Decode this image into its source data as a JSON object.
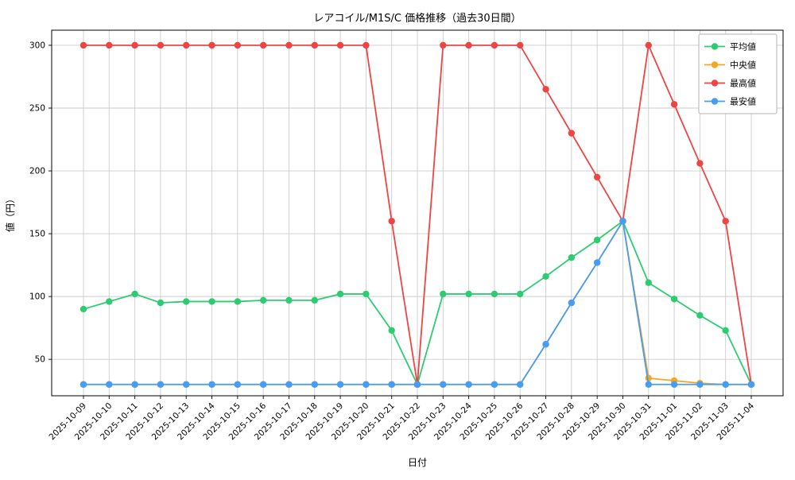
{
  "chart_data": {
    "type": "line",
    "title": "レアコイル/M1S/C 価格推移（過去30日間）",
    "xlabel": "日付",
    "ylabel": "値（円）",
    "grid": true,
    "legend_position": "top-right",
    "ylim": [
      21,
      312
    ],
    "yticks": [
      50,
      100,
      150,
      200,
      250,
      300
    ],
    "x": [
      "2025-10-09",
      "2025-10-10",
      "2025-10-11",
      "2025-10-12",
      "2025-10-13",
      "2025-10-14",
      "2025-10-15",
      "2025-10-16",
      "2025-10-17",
      "2025-10-18",
      "2025-10-19",
      "2025-10-20",
      "2025-10-21",
      "2025-10-22",
      "2025-10-23",
      "2025-10-24",
      "2025-10-25",
      "2025-10-26",
      "2025-10-27",
      "2025-10-28",
      "2025-10-29",
      "2025-10-30",
      "2025-10-31",
      "2025-11-01",
      "2025-11-02",
      "2025-11-03",
      "2025-11-04"
    ],
    "series": [
      {
        "name": "平均値",
        "color": "#2ecc71",
        "values": [
          90,
          96,
          102,
          95,
          96,
          96,
          96,
          97,
          97,
          97,
          102,
          102,
          73,
          30,
          102,
          102,
          102,
          102,
          116,
          131,
          145,
          160,
          111,
          98,
          85,
          73,
          30
        ]
      },
      {
        "name": "中央値",
        "color": "#f5a623",
        "values": [
          30,
          30,
          30,
          30,
          30,
          30,
          30,
          30,
          30,
          30,
          30,
          30,
          30,
          30,
          30,
          30,
          30,
          30,
          62,
          95,
          127,
          160,
          35,
          33,
          31,
          30,
          30
        ]
      },
      {
        "name": "最高値",
        "color": "#ef4444",
        "values": [
          300,
          300,
          300,
          300,
          300,
          300,
          300,
          300,
          300,
          300,
          300,
          300,
          160,
          30,
          300,
          300,
          300,
          300,
          265,
          230,
          195,
          160,
          300,
          253,
          206,
          160,
          30
        ]
      },
      {
        "name": "最安値",
        "color": "#459df5",
        "values": [
          30,
          30,
          30,
          30,
          30,
          30,
          30,
          30,
          30,
          30,
          30,
          30,
          30,
          30,
          30,
          30,
          30,
          30,
          62,
          95,
          127,
          160,
          30,
          30,
          30,
          30,
          30
        ]
      }
    ]
  }
}
